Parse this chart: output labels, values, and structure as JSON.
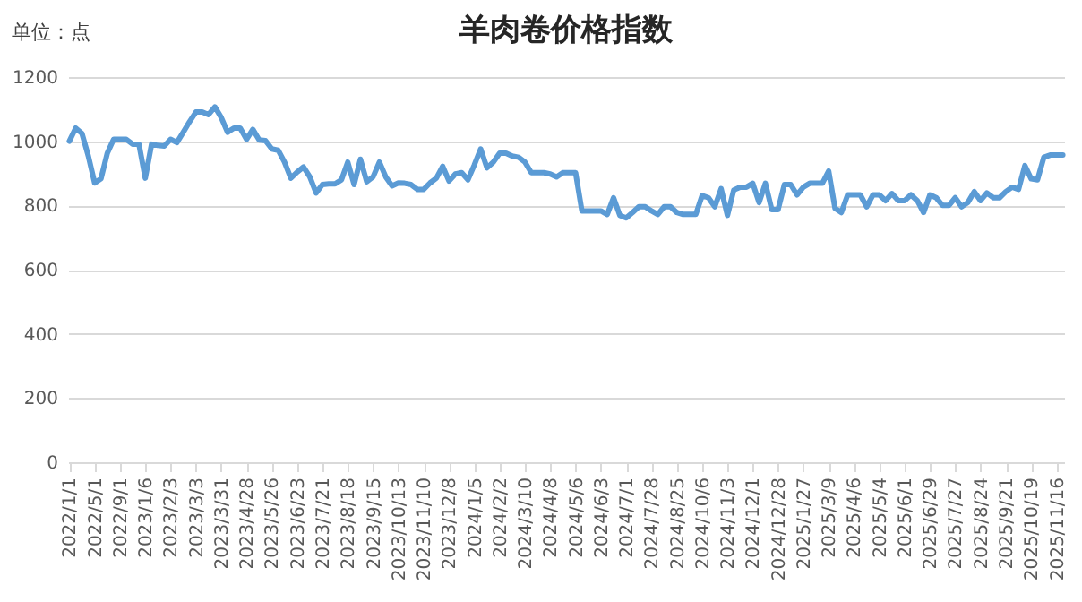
{
  "chart_data": {
    "type": "line",
    "title": "羊肉卷价格指数",
    "ylabel": "单位：点",
    "categories": [
      "2022/1/1",
      null,
      null,
      null,
      "2022/5/1",
      null,
      null,
      null,
      "2022/9/1",
      null,
      null,
      null,
      "2023/1/6",
      null,
      null,
      null,
      "2023/2/3",
      null,
      null,
      null,
      "2023/3/3",
      null,
      null,
      null,
      "2023/3/31",
      null,
      null,
      null,
      "2023/4/28",
      null,
      null,
      null,
      "2023/5/26",
      null,
      null,
      null,
      "2023/6/23",
      null,
      null,
      null,
      "2023/7/21",
      null,
      null,
      null,
      "2023/8/18",
      null,
      null,
      null,
      "2023/9/15",
      null,
      null,
      null,
      "2023/10/13",
      null,
      null,
      null,
      "2023/11/10",
      null,
      null,
      null,
      "2023/12/8",
      null,
      null,
      null,
      "2024/1/5",
      null,
      null,
      null,
      "2024/2/2",
      null,
      null,
      null,
      "2024/3/10",
      null,
      null,
      null,
      "2024/4/8",
      null,
      null,
      null,
      "2024/5/6",
      null,
      null,
      null,
      "2024/6/3",
      null,
      null,
      null,
      "2024/7/1",
      null,
      null,
      null,
      "2024/7/28",
      null,
      null,
      null,
      "2024/8/25",
      null,
      null,
      null,
      "2024/10/6",
      null,
      null,
      null,
      "2024/11/3",
      null,
      null,
      null,
      "2024/12/1",
      null,
      null,
      null,
      "2024/12/28",
      null,
      null,
      null,
      "2025/1/27",
      null,
      null,
      null,
      "2025/3/9",
      null,
      null,
      null,
      "2025/4/6",
      null,
      null,
      null,
      "2025/5/4",
      null,
      null,
      null,
      "2025/6/1",
      null,
      null,
      null,
      "2025/6/29",
      null,
      null,
      null,
      "2025/7/27",
      null,
      null,
      null,
      "2025/8/24",
      null,
      null,
      null,
      "2025/9/21",
      null,
      null,
      null,
      "2025/10/19",
      null,
      null,
      null,
      "2025/11/16",
      null
    ],
    "series": [
      {
        "color": "#5b9bd5",
        "values": [
          1000,
          1041,
          1024,
          954,
          870,
          883,
          963,
          1006,
          1006,
          1006,
          991,
          991,
          885,
          991,
          987,
          985,
          1006,
          996,
          1028,
          1061,
          1091,
          1091,
          1083,
          1107,
          1074,
          1028,
          1041,
          1041,
          1006,
          1037,
          1004,
          1002,
          976,
          972,
          935,
          885,
          904,
          920,
          889,
          839,
          865,
          867,
          867,
          880,
          935,
          865,
          944,
          874,
          889,
          935,
          889,
          861,
          870,
          869,
          865,
          850,
          850,
          870,
          885,
          922,
          876,
          898,
          902,
          880,
          926,
          976,
          917,
          935,
          963,
          963,
          954,
          950,
          935,
          902,
          902,
          902,
          898,
          889,
          902,
          902,
          902,
          783,
          783,
          783,
          783,
          772,
          824,
          769,
          761,
          778,
          796,
          796,
          783,
          772,
          796,
          796,
          778,
          772,
          772,
          772,
          831,
          824,
          796,
          852,
          769,
          848,
          857,
          857,
          869,
          809,
          869,
          787,
          787,
          865,
          865,
          833,
          857,
          869,
          869,
          869,
          907,
          791,
          778,
          833,
          833,
          833,
          796,
          833,
          833,
          815,
          837,
          815,
          815,
          833,
          815,
          778,
          833,
          824,
          800,
          800,
          824,
          796,
          809,
          843,
          815,
          839,
          824,
          824,
          843,
          857,
          850,
          924,
          883,
          880,
          950,
          957,
          957,
          957
        ]
      }
    ],
    "ylim": [
      0,
      1200
    ],
    "yticks": [
      0,
      200,
      400,
      600,
      800,
      1000,
      1200
    ],
    "grid": "y",
    "marker": "none",
    "line_style": "solid"
  }
}
